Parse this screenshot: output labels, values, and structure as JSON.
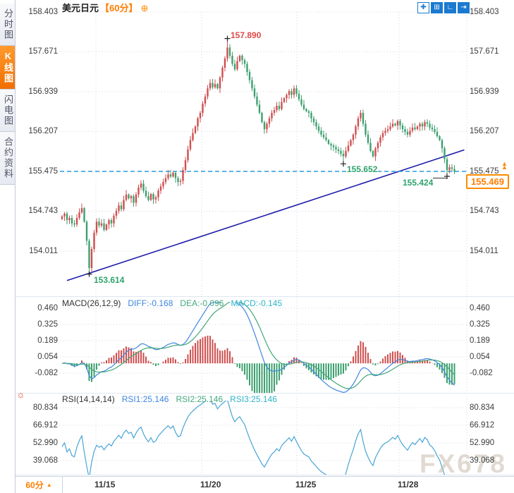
{
  "sidebar": {
    "tabs": [
      {
        "id": "time-chart",
        "label": "分时图",
        "active": false
      },
      {
        "id": "kline-chart",
        "label": "K线图",
        "active": true
      },
      {
        "id": "lightning-chart",
        "label": "闪电图",
        "active": false
      },
      {
        "id": "contract-info",
        "label": "合约资料",
        "active": false
      }
    ]
  },
  "header": {
    "symbol": "美元日元",
    "interval": "【60分】",
    "add_icon": "⊕"
  },
  "toolbar": {
    "icons": [
      {
        "name": "pan-crosshair-icon",
        "glyph": "✚",
        "primary": false
      },
      {
        "name": "axis-grid-icon",
        "glyph": "⊞",
        "primary": true
      },
      {
        "name": "axis-zoom-icon",
        "glyph": "∟",
        "primary": true
      },
      {
        "name": "goto-latest-icon",
        "glyph": "⇥",
        "primary": true
      }
    ]
  },
  "indicators": {
    "macd": {
      "title": "MACD(26,12,9)",
      "items": [
        {
          "label": "DIFF:-0.168",
          "color": "#3d85dd"
        },
        {
          "label": "DEA:-0.096",
          "color": "#44a97c"
        },
        {
          "label": "MACD:-0.145",
          "color": "#2fb3c9"
        }
      ]
    },
    "rsi": {
      "title": "RSI(14,14,14)",
      "items": [
        {
          "label": "RSI1:25.146",
          "color": "#3d85dd"
        },
        {
          "label": "RSI2:25.146",
          "color": "#44a97c"
        },
        {
          "label": "RSI3:25.146",
          "color": "#2fb3c9"
        }
      ]
    }
  },
  "axis": {
    "main_ticks": [
      "158.403",
      "157.671",
      "156.939",
      "156.207",
      "155.475",
      "154.743",
      "154.011"
    ],
    "macd_ticks": [
      "0.460",
      "0.325",
      "0.189",
      "0.054",
      "-0.082"
    ],
    "rsi_ticks": [
      "80.834",
      "66.912",
      "52.990",
      "39.068"
    ],
    "dates": [
      "11/15",
      "11/20",
      "11/25",
      "11/28"
    ]
  },
  "annotations": {
    "high_label": "157.890",
    "low_label": "153.614",
    "swing_low_label": "155.652",
    "last_low_label": "155.424",
    "current_price": "155.469",
    "hline_price": "155.475"
  },
  "bottom": {
    "interval": "60分",
    "arrow": "▲"
  },
  "watermark": "FX678",
  "misc": {
    "alert_icon": "☼",
    "up_arrows": "▲▲"
  },
  "colors": {
    "up": "#cf4e4e",
    "down": "#3ea06f",
    "diff_line": "#3f86de",
    "dea_line": "#41a678",
    "rsi_line": "#49a5d6",
    "trend_line": "#1d1daa",
    "hline": "#2a9bdf",
    "accent": "#ff7d00",
    "toolbar_blue": "#1b7ad0"
  },
  "chart_data": {
    "type": "candlestick",
    "title": "美元日元 60分",
    "panels": [
      "price",
      "MACD(26,12,9)",
      "RSI(14,14,14)"
    ],
    "price_axis_ticks": [
      158.403,
      157.671,
      156.939,
      156.207,
      155.475,
      154.743,
      154.011
    ],
    "macd_axis_ticks": [
      0.46,
      0.325,
      0.189,
      0.054,
      -0.082
    ],
    "rsi_axis_ticks": [
      80.834,
      66.912,
      52.99,
      39.068
    ],
    "x_date_labels": [
      "11/15",
      "11/20",
      "11/25",
      "11/28"
    ],
    "date_grid_x": [
      136,
      286,
      421,
      566
    ],
    "first_open": 154.6,
    "closes": [
      154.65,
      154.7,
      154.58,
      154.62,
      154.52,
      154.5,
      154.62,
      154.72,
      154.8,
      154.55,
      154.2,
      153.7,
      154.05,
      154.35,
      154.55,
      154.48,
      154.52,
      154.4,
      154.5,
      154.58,
      154.52,
      154.66,
      154.75,
      154.85,
      154.78,
      154.95,
      155.05,
      154.98,
      155.02,
      154.9,
      155.05,
      155.18,
      155.25,
      155.12,
      155.02,
      154.95,
      155.06,
      154.96,
      155.0,
      155.12,
      155.2,
      155.28,
      155.35,
      155.42,
      155.38,
      155.45,
      155.35,
      155.28,
      155.3,
      155.5,
      155.68,
      155.88,
      156.05,
      156.18,
      156.3,
      156.45,
      156.55,
      156.72,
      156.85,
      157.0,
      157.1,
      157.02,
      157.08,
      157.0,
      157.2,
      157.38,
      157.55,
      157.75,
      157.6,
      157.45,
      157.35,
      157.5,
      157.6,
      157.52,
      157.45,
      157.3,
      157.15,
      157.0,
      156.85,
      156.7,
      156.55,
      156.38,
      156.25,
      156.35,
      156.45,
      156.55,
      156.6,
      156.68,
      156.62,
      156.75,
      156.82,
      156.88,
      156.95,
      156.88,
      157.0,
      156.9,
      156.8,
      156.7,
      156.62,
      156.58,
      156.55,
      156.45,
      156.38,
      156.3,
      156.22,
      156.15,
      156.1,
      156.05,
      155.98,
      155.95,
      155.92,
      155.88,
      155.85,
      155.8,
      155.75,
      155.85,
      155.95,
      156.05,
      156.15,
      156.3,
      156.45,
      156.55,
      156.35,
      156.15,
      156.0,
      155.85,
      155.75,
      155.9,
      156.0,
      156.1,
      156.18,
      156.22,
      156.25,
      156.3,
      156.35,
      156.32,
      156.4,
      156.32,
      156.25,
      156.2,
      156.15,
      156.22,
      156.28,
      156.25,
      156.3,
      156.35,
      156.3,
      156.38,
      156.35,
      156.28,
      156.25,
      156.2,
      156.12,
      156.05,
      155.9,
      155.7,
      155.5,
      155.55,
      155.52,
      155.47
    ],
    "extremes": {
      "11": {
        "low": 153.614
      },
      "67": {
        "high": 157.89
      },
      "114": {
        "low": 155.652
      },
      "156": {
        "low": 155.424
      }
    },
    "key_points": {
      "high": 157.89,
      "low": 153.614,
      "swing_low": 155.652,
      "last_low": 155.424,
      "last_price": 155.469,
      "hline": 155.475
    },
    "macd_last": {
      "diff": -0.168,
      "dea": -0.096,
      "macd": -0.145
    },
    "rsi_last": {
      "rsi1": 25.146,
      "rsi2": 25.146,
      "rsi3": 25.146
    },
    "trendline": {
      "x1_index": 2,
      "price1": 153.47,
      "x2_index": 163,
      "price2": 155.87
    }
  }
}
